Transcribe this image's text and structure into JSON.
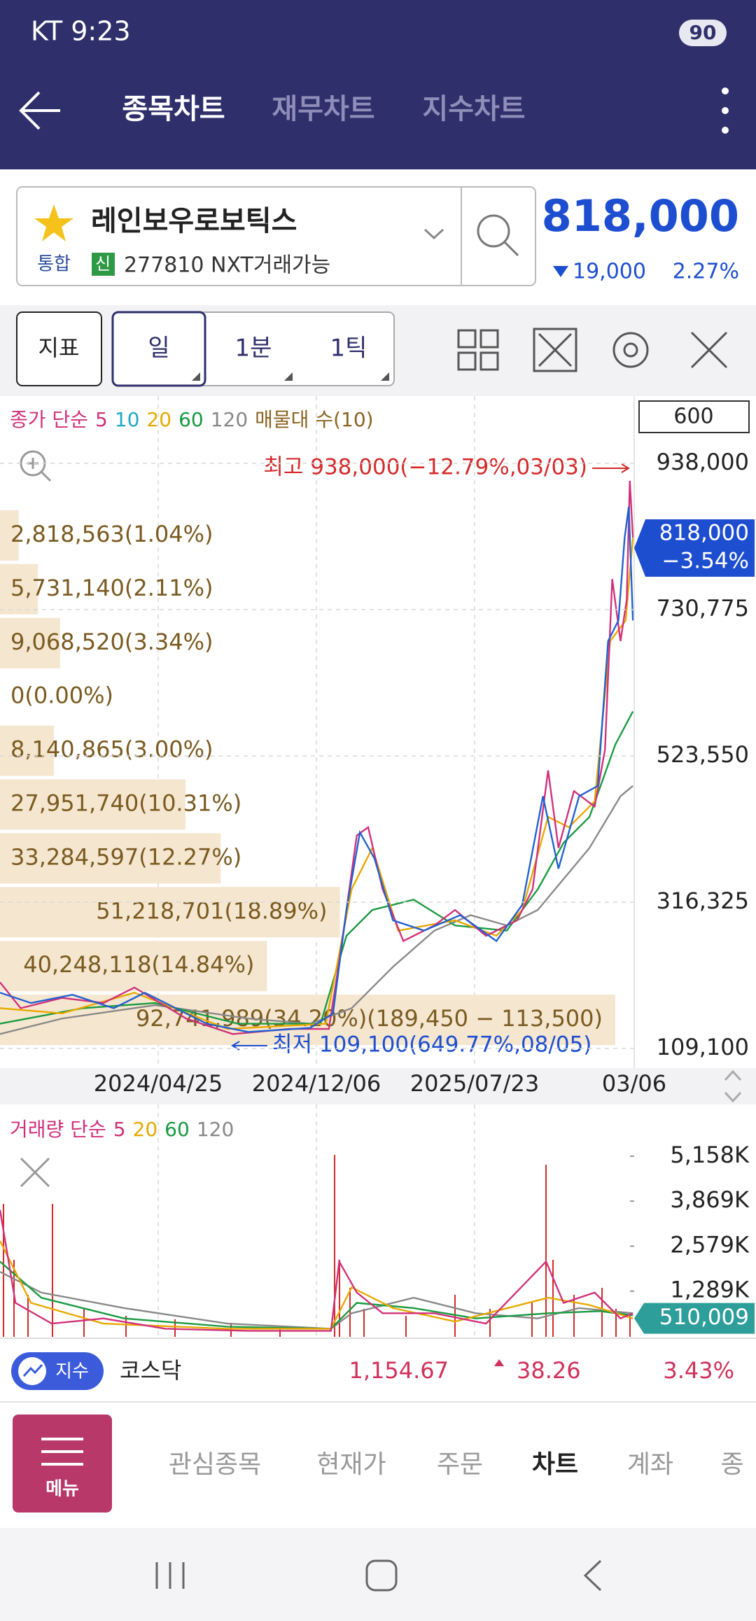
{
  "status_bar": {
    "carrier_time": "KT 9:23",
    "battery": "90"
  },
  "header": {
    "tabs": [
      "종목차트",
      "재무차트",
      "지수차트"
    ],
    "active_tab": 0
  },
  "stock": {
    "name": "레인보우로보틱스",
    "market": "통합",
    "credit": "신",
    "code_info": "277810 NXT거래가능",
    "price": "818,000",
    "change": "19,000",
    "change_pct": "2.27%"
  },
  "toolbar": {
    "indicator": "지표",
    "periods": [
      "일",
      "1분",
      "1틱"
    ],
    "active_period": 0
  },
  "price_chart": {
    "legend": [
      {
        "text": "종가 단순",
        "color": "#d0307a"
      },
      {
        "text": "5",
        "color": "#d0307a"
      },
      {
        "text": "10",
        "color": "#20a8c8"
      },
      {
        "text": "20",
        "color": "#e8a800"
      },
      {
        "text": "60",
        "color": "#189a40"
      },
      {
        "text": "120",
        "color": "#888888"
      },
      {
        "text": "매물대 수(10)",
        "color": "#8a6420"
      }
    ],
    "count_box": "600",
    "ylim": [
      81340,
      1033180
    ],
    "yticks": [
      {
        "value": 938000,
        "label": "938,000"
      },
      {
        "value": 730775,
        "label": "730,775"
      },
      {
        "value": 523550,
        "label": "523,550"
      },
      {
        "value": 316325,
        "label": "316,325"
      },
      {
        "value": 109100,
        "label": "109,100"
      }
    ],
    "high_note": "최고 938,000(−12.79%,03/03)",
    "low_note": "최저 109,100(649.77%,08/05)",
    "current": {
      "value": 818000,
      "label": "818,000",
      "change": "−3.54%"
    },
    "dates": [
      "2024/04/25",
      "2024/12/06",
      "2025/07/23",
      "03/06"
    ]
  },
  "volume_profile": {
    "rows": [
      {
        "label": "2,818,563(1.04%)",
        "pct": 1.04
      },
      {
        "label": "5,731,140(2.11%)",
        "pct": 2.11
      },
      {
        "label": "9,068,520(3.34%)",
        "pct": 3.34
      },
      {
        "label": "0(0.00%)",
        "pct": 0
      },
      {
        "label": "8,140,865(3.00%)",
        "pct": 3.0
      },
      {
        "label": "27,951,740(10.31%)",
        "pct": 10.31
      },
      {
        "label": "33,284,597(12.27%)",
        "pct": 12.27
      },
      {
        "label": "51,218,701(18.89%)",
        "pct": 18.89
      },
      {
        "label": "40,248,118(14.84%)",
        "pct": 14.84
      },
      {
        "label": "92,741,989(34.20%)(189,450 − 113,500)",
        "pct": 34.2
      }
    ]
  },
  "volume_chart": {
    "legend": [
      {
        "text": "거래량 단순",
        "color": "#d0307a"
      },
      {
        "text": "5",
        "color": "#d0307a"
      },
      {
        "text": "20",
        "color": "#e8a800"
      },
      {
        "text": "60",
        "color": "#189a40"
      },
      {
        "text": "120",
        "color": "#888888"
      }
    ],
    "ylim": [
      0,
      6640
    ],
    "yticks": [
      {
        "value": 5158,
        "label": "5,158K"
      },
      {
        "value": 3869,
        "label": "3,869K"
      },
      {
        "value": 2579,
        "label": "2,579K"
      },
      {
        "value": 1289,
        "label": "1,289K"
      }
    ],
    "current": {
      "value": 510.009,
      "label": "510,009"
    }
  },
  "index_bar": {
    "badge": "지수",
    "name": "코스닥",
    "value": "1,154.67",
    "change": "38.26",
    "change_pct": "3.43%"
  },
  "bottom_nav": {
    "menu": "메뉴",
    "items": [
      "관심종목",
      "현재가",
      "주문",
      "차트",
      "계좌",
      "종"
    ],
    "active": 3
  }
}
